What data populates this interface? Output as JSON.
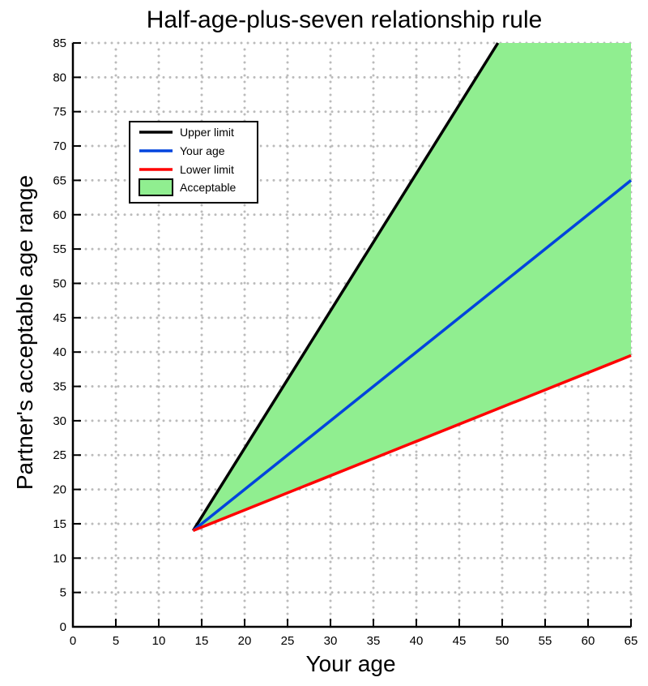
{
  "chart_data": {
    "type": "line",
    "title": "Half-age-plus-seven relationship rule",
    "xlabel": "Your age",
    "ylabel": "Partner's acceptable age range",
    "xlim": [
      0,
      65
    ],
    "ylim": [
      0,
      85
    ],
    "xticks": [
      0,
      5,
      10,
      15,
      20,
      25,
      30,
      35,
      40,
      45,
      50,
      55,
      60,
      65
    ],
    "yticks": [
      0,
      5,
      10,
      15,
      20,
      25,
      30,
      35,
      40,
      45,
      50,
      55,
      60,
      65,
      70,
      75,
      80,
      85
    ],
    "grid": "dotted",
    "legend_position": "top-left",
    "series": [
      {
        "name": "Upper limit",
        "color": "#000000",
        "x": [
          14,
          49.5
        ],
        "y": [
          14,
          85
        ]
      },
      {
        "name": "Your age",
        "color": "#0044dd",
        "x": [
          14,
          65
        ],
        "y": [
          14,
          65
        ]
      },
      {
        "name": "Lower limit",
        "color": "#ff0000",
        "x": [
          14,
          65
        ],
        "y": [
          14,
          39.5
        ]
      }
    ],
    "area": {
      "name": "Acceptable",
      "color": "#90ee90",
      "between": [
        "Lower limit",
        "Upper limit"
      ]
    }
  }
}
